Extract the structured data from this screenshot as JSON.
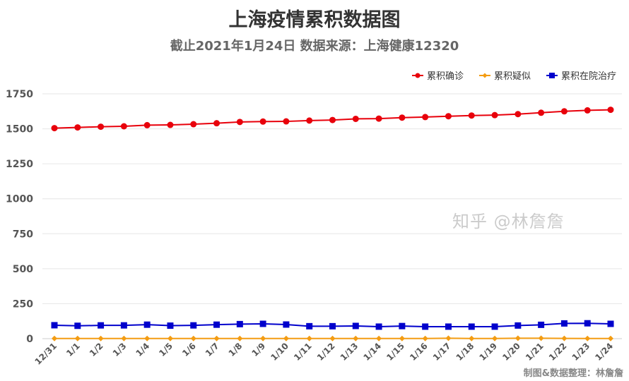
{
  "chart_data": {
    "type": "line",
    "title": "上海疫情累积数据图",
    "subtitle": "截止2021年1月24日 数据来源：上海健康12320",
    "xlabel": "",
    "ylabel": "",
    "categories": [
      "12/31",
      "1/1",
      "1/2",
      "1/3",
      "1/4",
      "1/5",
      "1/6",
      "1/7",
      "1/8",
      "1/9",
      "1/10",
      "1/11",
      "1/12",
      "1/13",
      "1/14",
      "1/15",
      "1/16",
      "1/17",
      "1/18",
      "1/19",
      "1/20",
      "1/21",
      "1/22",
      "1/23",
      "1/24"
    ],
    "ylim": [
      0,
      1750
    ],
    "yticks": [
      0,
      250,
      500,
      750,
      1000,
      1250,
      1500,
      1750
    ],
    "grid": true,
    "legend_position": "top-right",
    "series": [
      {
        "name": "累积确诊",
        "color": "#e8000b",
        "marker": "circle",
        "values": [
          1505,
          1510,
          1515,
          1518,
          1526,
          1528,
          1533,
          1540,
          1549,
          1552,
          1553,
          1559,
          1563,
          1571,
          1573,
          1580,
          1584,
          1590,
          1595,
          1598,
          1605,
          1615,
          1625,
          1632,
          1636
        ]
      },
      {
        "name": "累积疑似",
        "color": "#f39c12",
        "marker": "diamond",
        "values": [
          1,
          1,
          1,
          1,
          1,
          1,
          1,
          1,
          1,
          1,
          1,
          1,
          1,
          1,
          1,
          1,
          1,
          3,
          1,
          1,
          3,
          3,
          2,
          1,
          1
        ]
      },
      {
        "name": "累积在院治疗",
        "color": "#0000cc",
        "marker": "square",
        "values": [
          96,
          92,
          95,
          95,
          100,
          93,
          95,
          100,
          104,
          106,
          101,
          89,
          89,
          91,
          86,
          90,
          86,
          86,
          86,
          86,
          94,
          99,
          109,
          110,
          106
        ]
      }
    ]
  },
  "watermark": "知乎 @林詹詹",
  "credit": "制图&数据整理：林詹詹"
}
